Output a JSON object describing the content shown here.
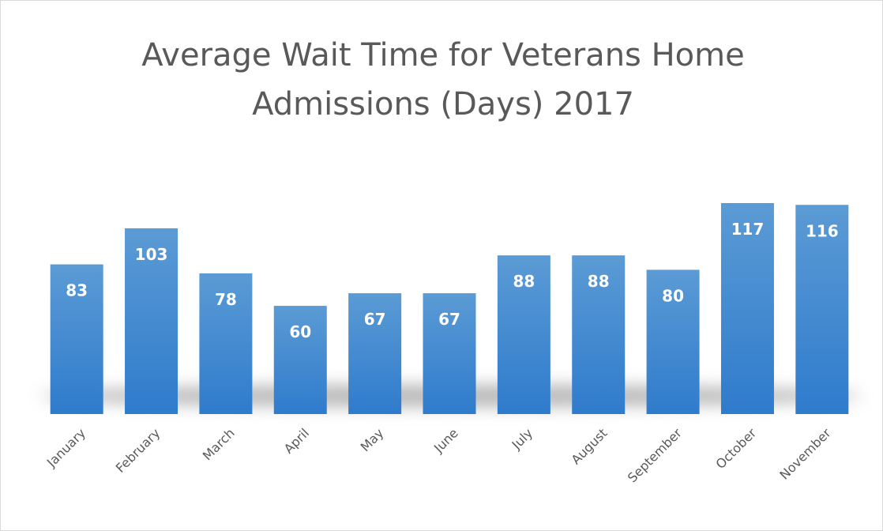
{
  "chart_data": {
    "type": "bar",
    "title": "Average Wait Time for Veterans Home Admissions (Days) 2017",
    "categories": [
      "January",
      "February",
      "March",
      "April",
      "May",
      "June",
      "July",
      "August",
      "September",
      "October",
      "November"
    ],
    "values": [
      83,
      103,
      78,
      60,
      67,
      67,
      88,
      88,
      80,
      117,
      116
    ],
    "color": "#4a90d9"
  }
}
